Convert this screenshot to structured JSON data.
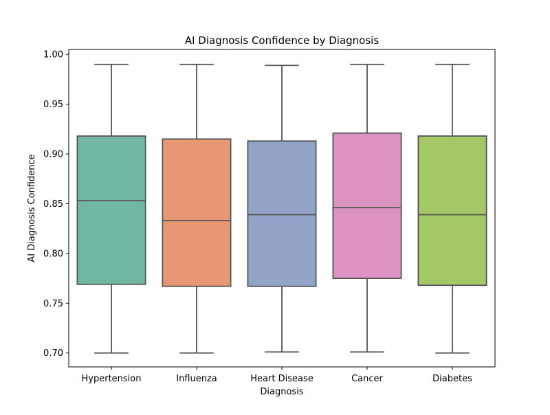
{
  "chart_data": {
    "type": "box",
    "title": "AI Diagnosis Confidence by Diagnosis",
    "xlabel": "Diagnosis",
    "ylabel": "AI Diagnosis Confidence",
    "ylim": [
      0.686,
      1.005
    ],
    "yticks": [
      0.7,
      0.75,
      0.8,
      0.85,
      0.9,
      0.95,
      1.0
    ],
    "ytick_labels": [
      "0.70",
      "0.75",
      "0.80",
      "0.85",
      "0.90",
      "0.95",
      "1.00"
    ],
    "grid": false,
    "legend": "none",
    "categories": [
      "Hypertension",
      "Influenza",
      "Heart Disease",
      "Cancer",
      "Diabetes"
    ],
    "boxes": [
      {
        "category": "Hypertension",
        "whisker_low": 0.7,
        "q1": 0.769,
        "median": 0.853,
        "q3": 0.918,
        "whisker_high": 0.99,
        "color": "#72b7a3"
      },
      {
        "category": "Influenza",
        "whisker_low": 0.7,
        "q1": 0.767,
        "median": 0.833,
        "q3": 0.915,
        "whisker_high": 0.99,
        "color": "#e89775"
      },
      {
        "category": "Heart Disease",
        "whisker_low": 0.701,
        "q1": 0.767,
        "median": 0.839,
        "q3": 0.913,
        "whisker_high": 0.989,
        "color": "#91a3c6"
      },
      {
        "category": "Cancer",
        "whisker_low": 0.701,
        "q1": 0.775,
        "median": 0.846,
        "q3": 0.921,
        "whisker_high": 0.99,
        "color": "#dd93c1"
      },
      {
        "category": "Diabetes",
        "whisker_low": 0.7,
        "q1": 0.768,
        "median": 0.839,
        "q3": 0.918,
        "whisker_high": 0.99,
        "color": "#a3c865"
      }
    ],
    "line_color": "#555555"
  }
}
